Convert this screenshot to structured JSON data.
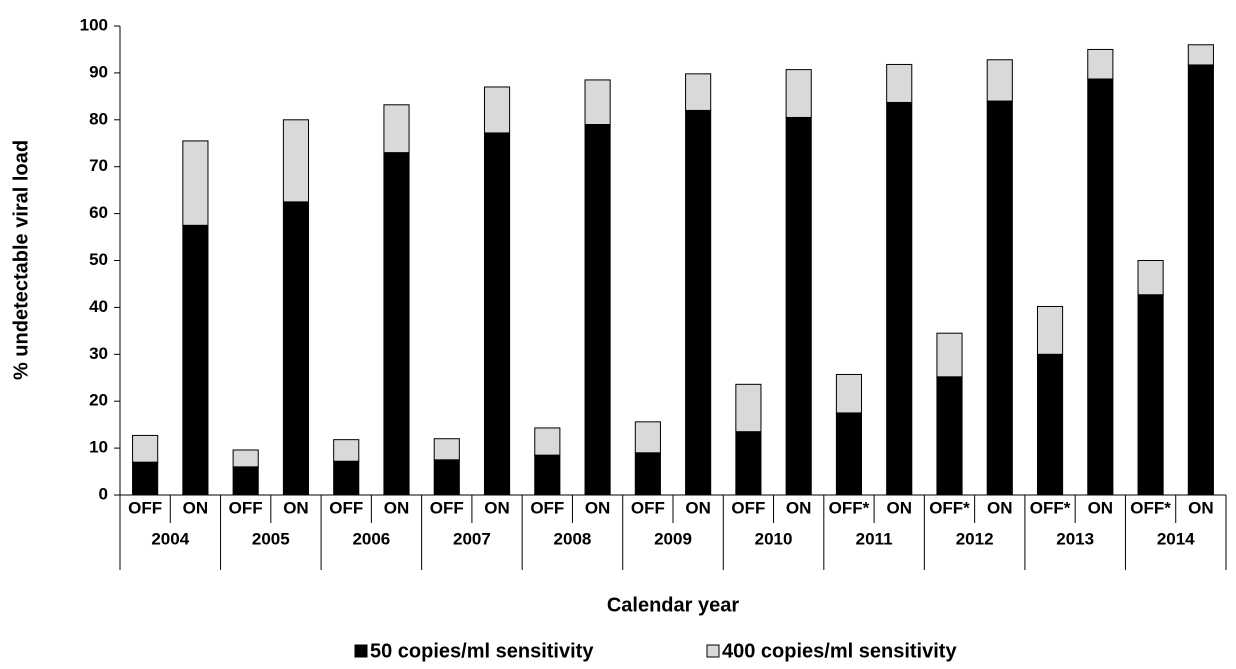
{
  "chart_data": {
    "type": "stacked_bar",
    "y_axis_label": "% undetectable viral load",
    "x_axis_label": "Calendar year",
    "categories": [
      "OFF",
      "ON",
      "OFF",
      "ON",
      "OFF",
      "ON",
      "OFF",
      "ON",
      "OFF",
      "ON",
      "OFF",
      "ON",
      "OFF",
      "ON",
      "OFF*",
      "ON",
      "OFF*",
      "ON",
      "OFF*",
      "ON",
      "OFF*",
      "ON"
    ],
    "groups": [
      "2004",
      "2005",
      "2006",
      "2007",
      "2008",
      "2009",
      "2010",
      "2011",
      "2012",
      "2013",
      "2014"
    ],
    "series": [
      {
        "name": "50 copies/ml sensitivity",
        "color": "#000000",
        "values": [
          7,
          57.5,
          6,
          62.5,
          7.2,
          73,
          7.5,
          77.2,
          8.5,
          79,
          9,
          82,
          13.5,
          80.5,
          17.5,
          83.7,
          25.2,
          84,
          30,
          88.7,
          42.7,
          91.7
        ]
      },
      {
        "name": "400 copies/ml sensitivity",
        "color": "#d9d9d9",
        "values": [
          5.7,
          18,
          3.6,
          17.5,
          4.6,
          10.2,
          4.5,
          9.8,
          5.8,
          9.5,
          6.6,
          7.8,
          10.1,
          10.2,
          8.2,
          8.1,
          9.3,
          8.8,
          10.2,
          6.3,
          7.3,
          4.3
        ]
      }
    ],
    "ylim": [
      0,
      100
    ],
    "yticks": [
      0,
      10,
      20,
      30,
      40,
      50,
      60,
      70,
      80,
      90,
      100
    ],
    "grid": false
  }
}
